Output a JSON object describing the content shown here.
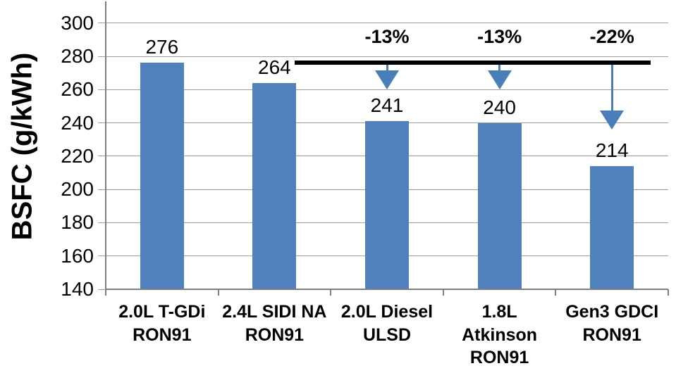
{
  "chart_data": {
    "type": "bar",
    "title": "",
    "ylabel": "BSFC (g/kWh)",
    "xlabel": "",
    "ylim": [
      140,
      313
    ],
    "yticks": [
      140,
      160,
      180,
      200,
      220,
      240,
      260,
      280,
      300
    ],
    "grid": true,
    "legend": "none",
    "categories": [
      "2.0L T-GDi\nRON91",
      "2.4L SIDI NA\nRON91",
      "2.0L Diesel\nULSD",
      "1.8L\nAtkinson\nRON91",
      "Gen3 GDCI\nRON91"
    ],
    "values": [
      276,
      264,
      241,
      240,
      214
    ],
    "data_labels": [
      "276",
      "264",
      "241",
      "240",
      "214"
    ],
    "bar_color": "#4f81bd",
    "gridline_color": "#9d9d9d",
    "axis_color": "#7f7f7f",
    "text_color": "#000000",
    "reference_line": {
      "value": 276,
      "color": "#000000",
      "start_frac": 0.336,
      "end_frac": 0.969
    },
    "annotations": [
      {
        "label": "-13%",
        "category_index": 2,
        "tip_value": 260
      },
      {
        "label": "-13%",
        "category_index": 3,
        "tip_value": 260
      },
      {
        "label": "-22%",
        "category_index": 4,
        "tip_value": 236
      }
    ],
    "arrow_color": "#4a7ebb"
  }
}
